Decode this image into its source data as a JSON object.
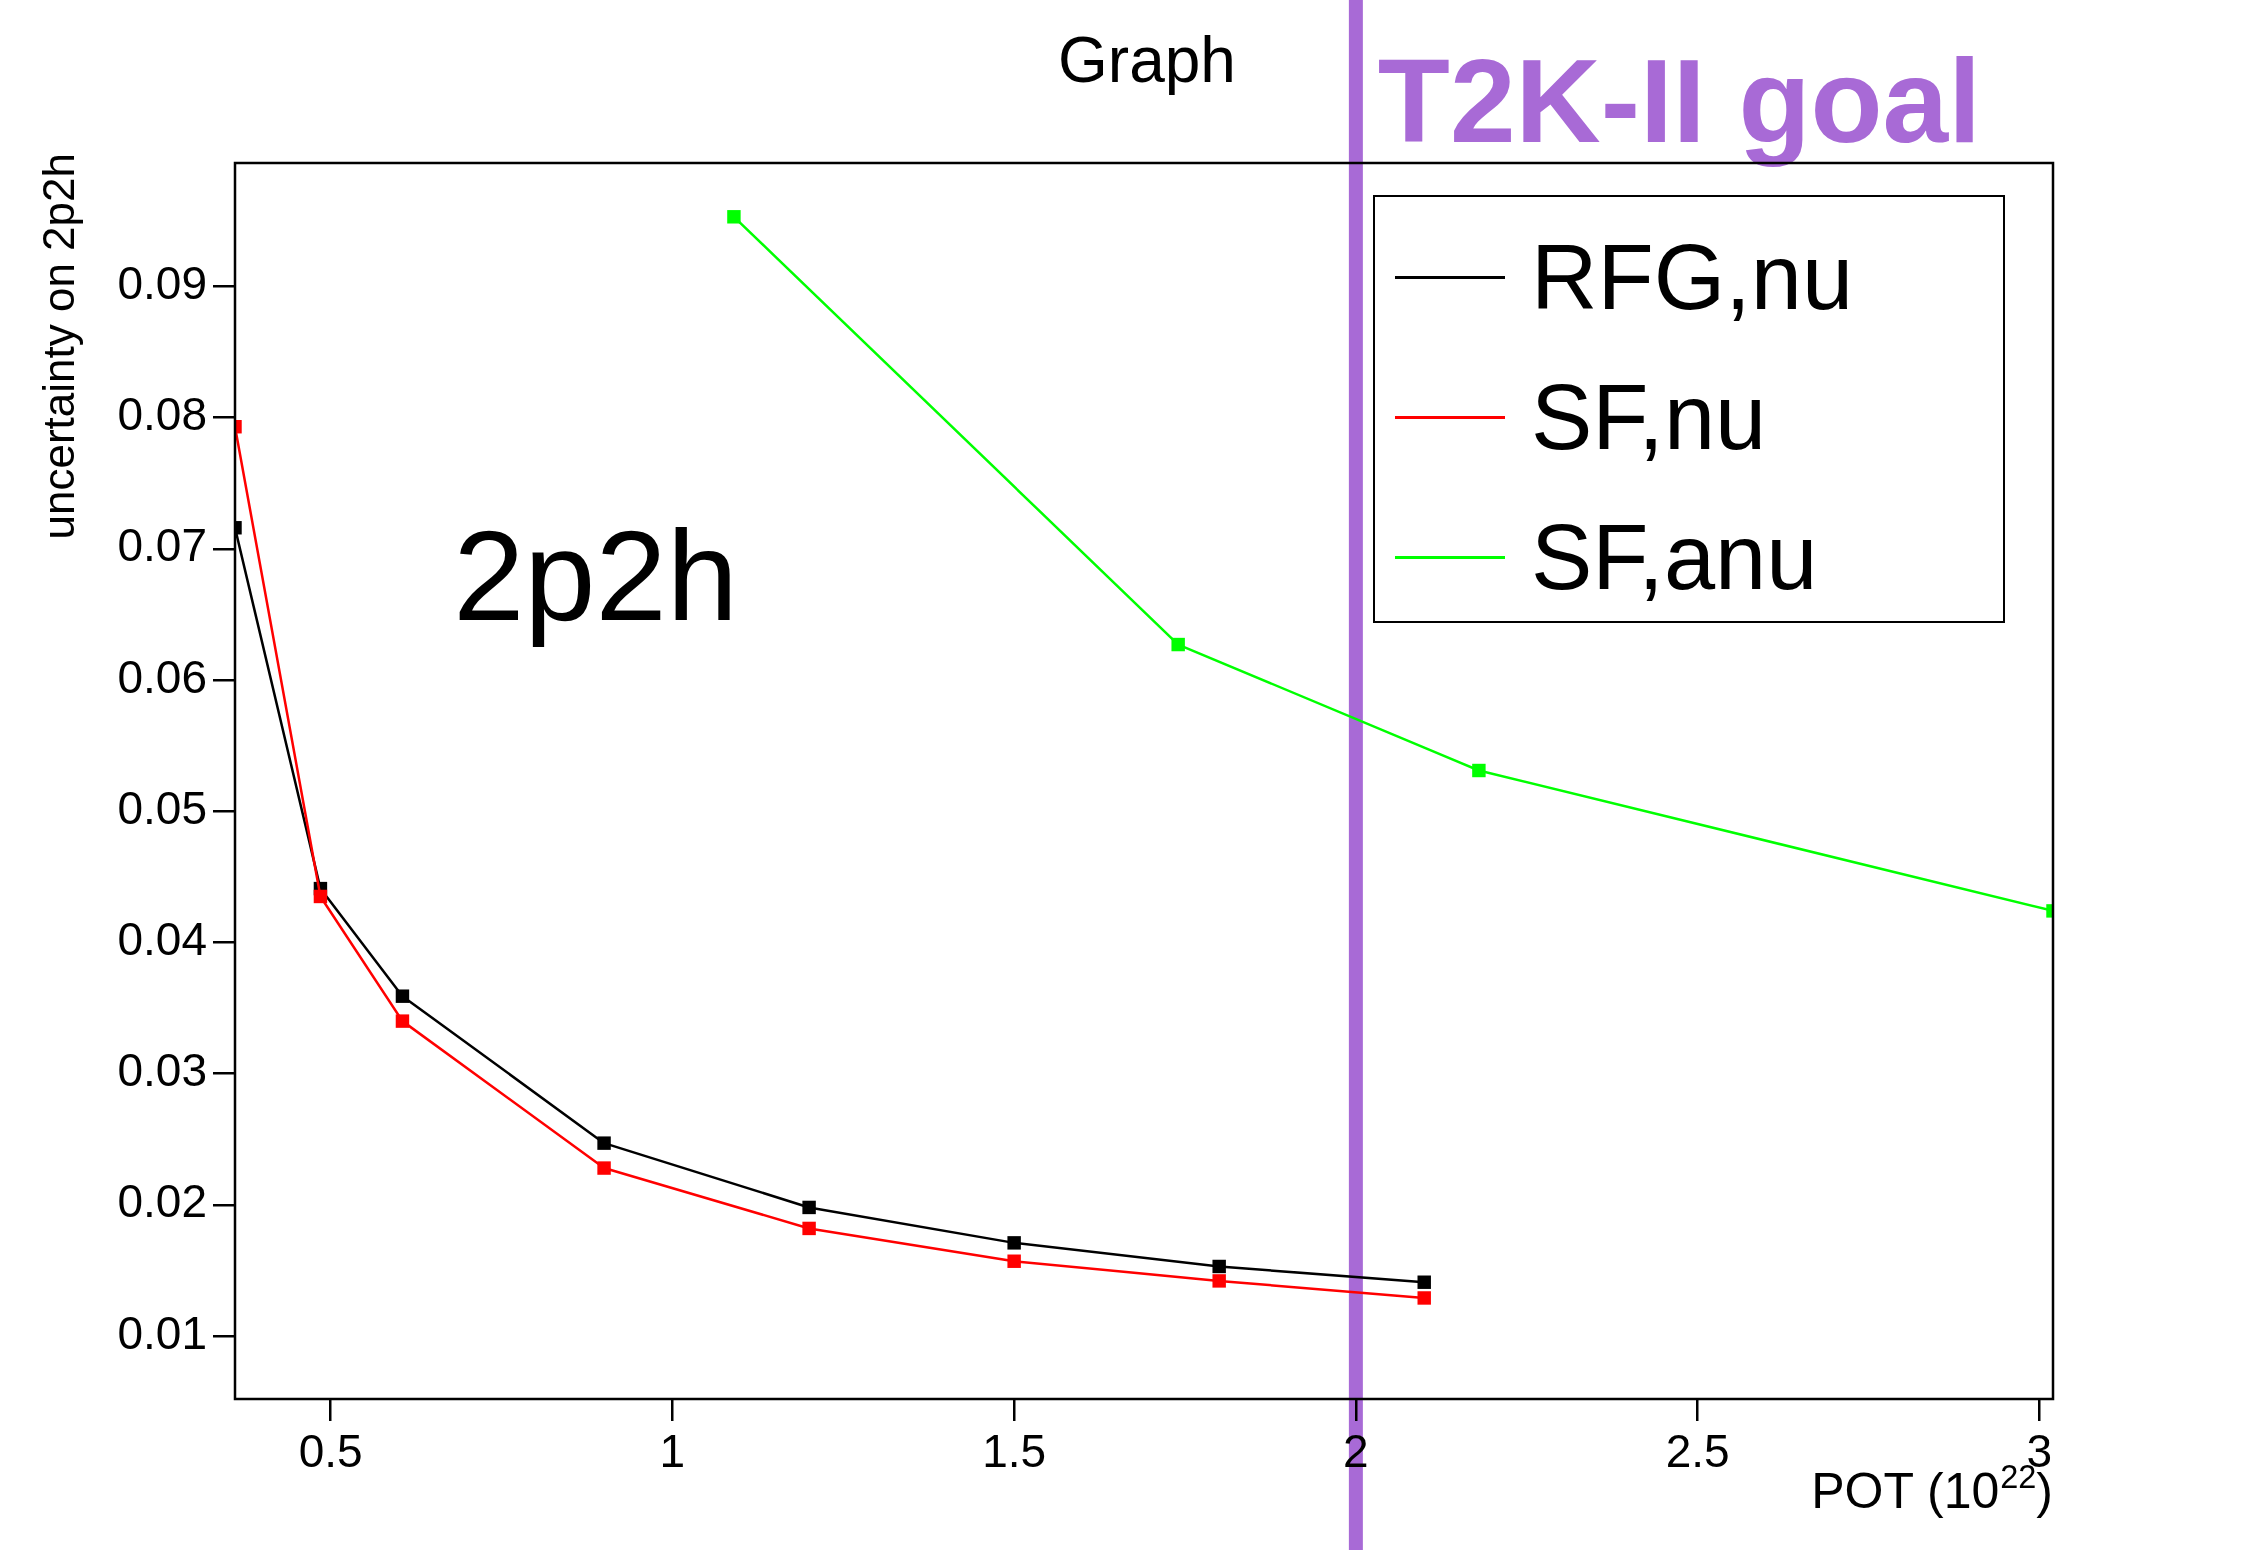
{
  "chart_data": {
    "type": "line",
    "title": "Graph",
    "xlabel": "POT (10$^{22}$)",
    "ylabel": "uncertainty on 2p2h",
    "annotations": [
      "2p2h"
    ],
    "xlim": [
      0.36,
      3.02
    ],
    "ylim": [
      0.0052,
      0.0994
    ],
    "xticks": [
      0.5,
      1,
      1.5,
      2,
      2.5,
      3
    ],
    "yticks": [
      0.01,
      0.02,
      0.03,
      0.04,
      0.05,
      0.06,
      0.07,
      0.08,
      0.09
    ],
    "ref_lines": [
      {
        "axis": "x",
        "value": 2,
        "label": "T2K-II goal",
        "color": "#a86ad6"
      }
    ],
    "grid": false,
    "legend": "top right",
    "marker": "square",
    "line_style": "solid",
    "series": [
      {
        "name": "RFG,nu",
        "color": "#000000",
        "x": [
          0.36,
          0.485,
          0.605,
          0.9,
          1.2,
          1.5,
          1.8,
          2.1
        ],
        "values": [
          0.0716,
          0.0441,
          0.0359,
          0.0247,
          0.0198,
          0.0171,
          0.0153,
          0.0141
        ]
      },
      {
        "name": "SF,nu",
        "color": "#ff0000",
        "x": [
          0.36,
          0.485,
          0.605,
          0.9,
          1.2,
          1.5,
          1.8,
          2.1
        ],
        "values": [
          0.0793,
          0.0435,
          0.034,
          0.0228,
          0.0182,
          0.0157,
          0.0142,
          0.0129
        ]
      },
      {
        "name": "SF,anu",
        "color": "#00ff00",
        "x": [
          1.09,
          1.74,
          2.18,
          3.02
        ],
        "values": [
          0.0953,
          0.0627,
          0.0531,
          0.0424
        ]
      }
    ]
  }
}
